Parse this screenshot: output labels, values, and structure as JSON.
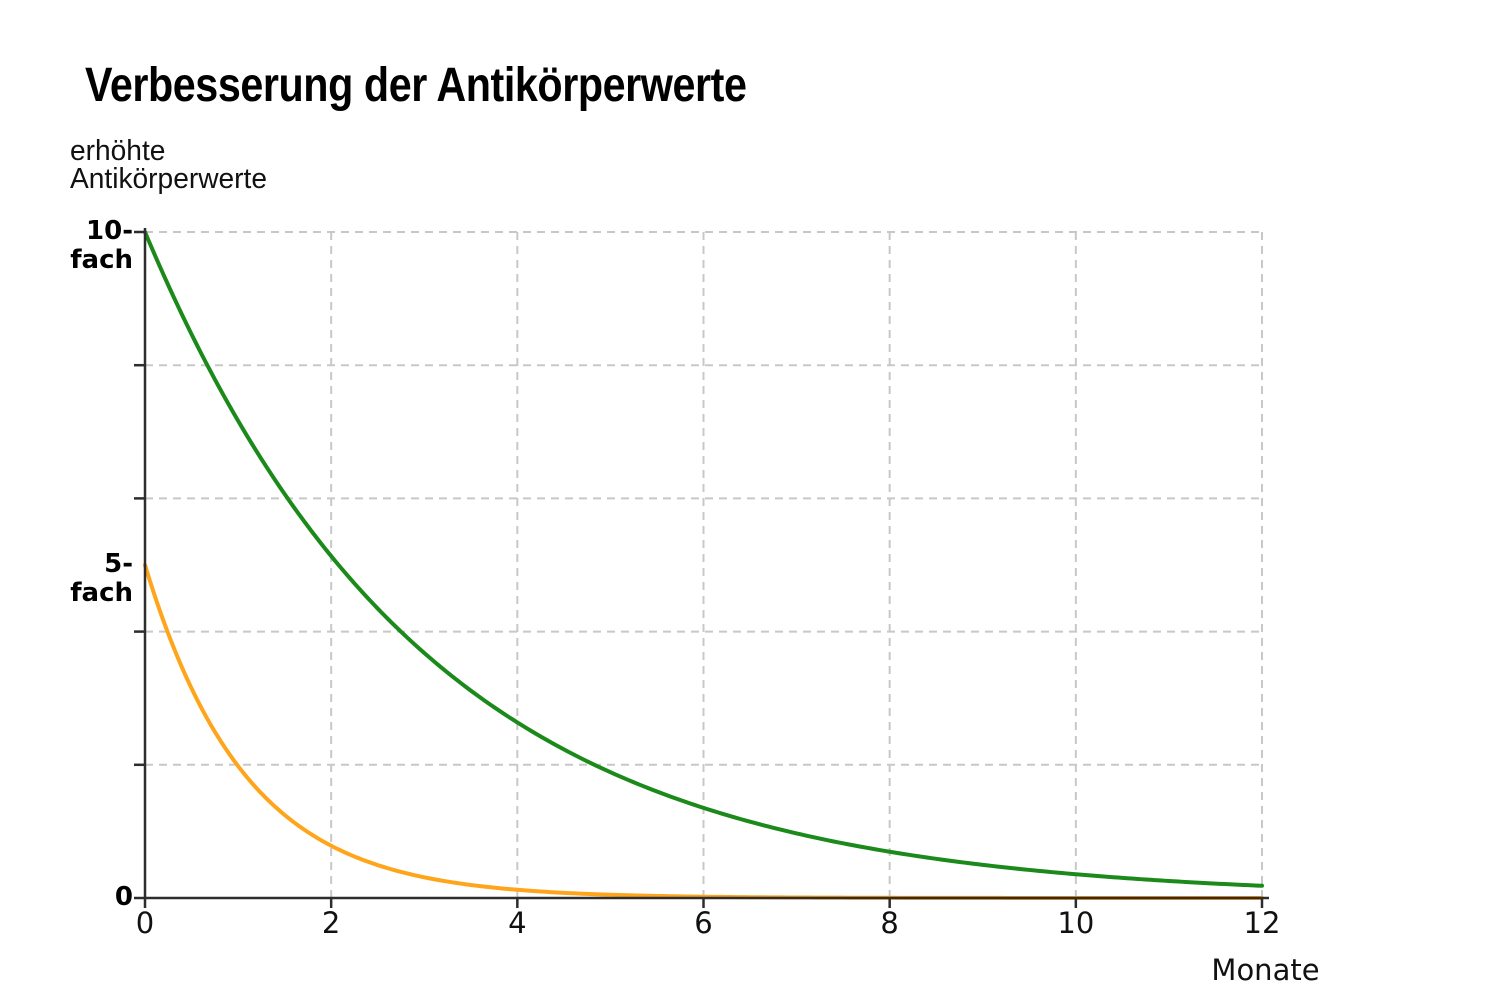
{
  "page": {
    "background": "#ffffff"
  },
  "chart": {
    "title": "Verbesserung der Antikörperwerte",
    "y_axis_label": "erhöhte\nAntikörperwerte",
    "x_axis_label": "Monate",
    "axis_color": "#2d2d2d",
    "grid_color": "#c8c8c8",
    "text_color": "#000000"
  },
  "chart_data": {
    "type": "line",
    "title": "Verbesserung der Antikörperwerte",
    "xlabel": "Monate",
    "ylabel": "erhöhte Antikörperwerte",
    "xlim": [
      0,
      12
    ],
    "ylim": [
      0,
      10
    ],
    "x_ticks": [
      0,
      2,
      4,
      6,
      8,
      10,
      12
    ],
    "y_tick_marks": [
      0,
      2,
      4,
      6,
      8,
      10
    ],
    "y_tick_labels": [
      {
        "value": 10,
        "label": "10-\nfach"
      },
      {
        "value": 5,
        "label": "5-\nfach"
      },
      {
        "value": 0,
        "label": "0"
      }
    ],
    "grid": {
      "style": "dashed",
      "x_values": [
        2,
        4,
        6,
        8,
        10,
        12
      ],
      "y_values": [
        2,
        4,
        6,
        8,
        10
      ]
    },
    "legend": "none",
    "x": [
      0,
      1,
      2,
      3,
      4,
      5,
      6,
      7,
      8,
      9,
      10,
      11,
      12
    ],
    "series": [
      {
        "slug": "10-fach",
        "color": "#1b8a1b",
        "start_value": 10,
        "decay_tau_months": 3,
        "values": [
          10,
          7.17,
          5.13,
          3.68,
          2.64,
          1.89,
          1.35,
          0.97,
          0.7,
          0.5,
          0.36,
          0.26,
          0.18
        ]
      },
      {
        "slug": "5-fach",
        "color": "#ffa51c",
        "start_value": 5,
        "decay_tau_months": 1.08,
        "values": [
          5,
          1.98,
          0.78,
          0.31,
          0.12,
          0.05,
          0.02,
          0.01,
          0,
          0,
          0,
          0,
          0
        ]
      }
    ]
  }
}
